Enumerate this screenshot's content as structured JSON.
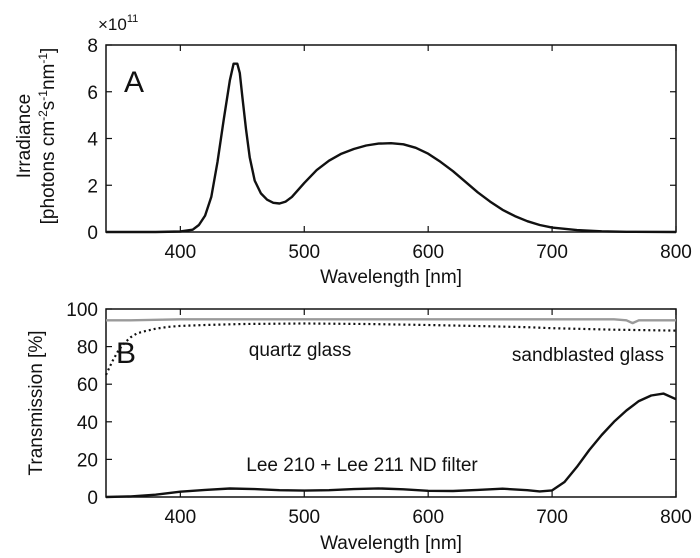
{
  "chart_data": [
    {
      "type": "line",
      "panel_label": "A",
      "ylabel_line1": "Irradiance",
      "ylabel_line2": "[photons cm",
      "ylabel_sup1": "-2",
      "ylabel_mid": "s",
      "ylabel_sup2": "-1",
      "ylabel_mid2": "nm",
      "ylabel_sup3": "-1",
      "ylabel_end": "]",
      "scale_factor_base": "×10",
      "scale_factor_exp": "11",
      "xlabel": "Wavelength [nm]",
      "xlim": [
        340,
        800
      ],
      "ylim": [
        0,
        8
      ],
      "xticks": [
        "400",
        "500",
        "600",
        "700",
        "800"
      ],
      "yticks": [
        "0",
        "2",
        "4",
        "6",
        "8"
      ],
      "grid": false,
      "series": [
        {
          "color": "#111111",
          "x": [
            340,
            380,
            400,
            410,
            415,
            420,
            425,
            430,
            435,
            440,
            443,
            446,
            448,
            450,
            453,
            456,
            460,
            465,
            470,
            475,
            480,
            485,
            490,
            500,
            510,
            520,
            530,
            540,
            550,
            560,
            570,
            580,
            590,
            600,
            610,
            620,
            630,
            640,
            650,
            660,
            670,
            680,
            690,
            700,
            720,
            740,
            760,
            800
          ],
          "y": [
            0,
            0,
            0.02,
            0.1,
            0.3,
            0.7,
            1.5,
            3.0,
            4.8,
            6.5,
            7.2,
            7.2,
            6.8,
            5.8,
            4.4,
            3.2,
            2.2,
            1.65,
            1.38,
            1.25,
            1.22,
            1.3,
            1.5,
            2.1,
            2.65,
            3.05,
            3.35,
            3.55,
            3.7,
            3.78,
            3.8,
            3.75,
            3.6,
            3.35,
            3.0,
            2.6,
            2.15,
            1.7,
            1.3,
            0.95,
            0.68,
            0.46,
            0.3,
            0.19,
            0.08,
            0.03,
            0.01,
            0
          ]
        }
      ]
    },
    {
      "type": "line",
      "panel_label": "B",
      "ylabel": "Transmission [%]",
      "xlabel": "Wavelength [nm]",
      "xlim": [
        340,
        800
      ],
      "ylim": [
        0,
        100
      ],
      "xticks": [
        "400",
        "500",
        "600",
        "700",
        "800"
      ],
      "yticks": [
        "0",
        "20",
        "40",
        "60",
        "80",
        "100"
      ],
      "grid": false,
      "series": [
        {
          "name": "quartz glass",
          "color": "#9a9a9a",
          "style": "solid",
          "x": [
            340,
            360,
            400,
            450,
            500,
            550,
            600,
            650,
            700,
            750,
            760,
            765,
            770,
            800
          ],
          "y": [
            94,
            94,
            94.5,
            94.5,
            94.5,
            94.5,
            94.5,
            94.5,
            94.5,
            94.5,
            94,
            92.5,
            94,
            94
          ]
        },
        {
          "name": "sandblasted glass",
          "color": "#111111",
          "style": "dotted",
          "x": [
            340,
            345,
            350,
            355,
            360,
            365,
            370,
            380,
            390,
            400,
            420,
            450,
            500,
            550,
            600,
            650,
            680,
            700,
            750,
            800
          ],
          "y": [
            65,
            72,
            78,
            82,
            85,
            87,
            88,
            89.5,
            90.5,
            91,
            91.5,
            92,
            92.3,
            92,
            91.5,
            90.8,
            90.3,
            89.8,
            89,
            88.5
          ]
        },
        {
          "name": "Lee 210 + Lee 211 ND filter",
          "color": "#111111",
          "style": "solid",
          "x": [
            340,
            360,
            380,
            400,
            420,
            440,
            460,
            480,
            500,
            520,
            540,
            560,
            580,
            600,
            620,
            640,
            660,
            680,
            690,
            700,
            710,
            720,
            730,
            740,
            750,
            760,
            770,
            780,
            790,
            800
          ],
          "y": [
            0,
            0.3,
            1.2,
            2.8,
            3.8,
            4.5,
            4.2,
            3.6,
            3.4,
            3.6,
            4.2,
            4.6,
            4.1,
            3.3,
            3.2,
            3.8,
            4.4,
            3.6,
            3.0,
            3.5,
            8,
            16,
            25,
            33,
            40,
            46,
            51,
            54,
            55,
            52
          ]
        }
      ],
      "annotations": [
        "quartz glass",
        "sandblasted glass",
        "Lee 210 + Lee 211 ND filter"
      ]
    }
  ]
}
